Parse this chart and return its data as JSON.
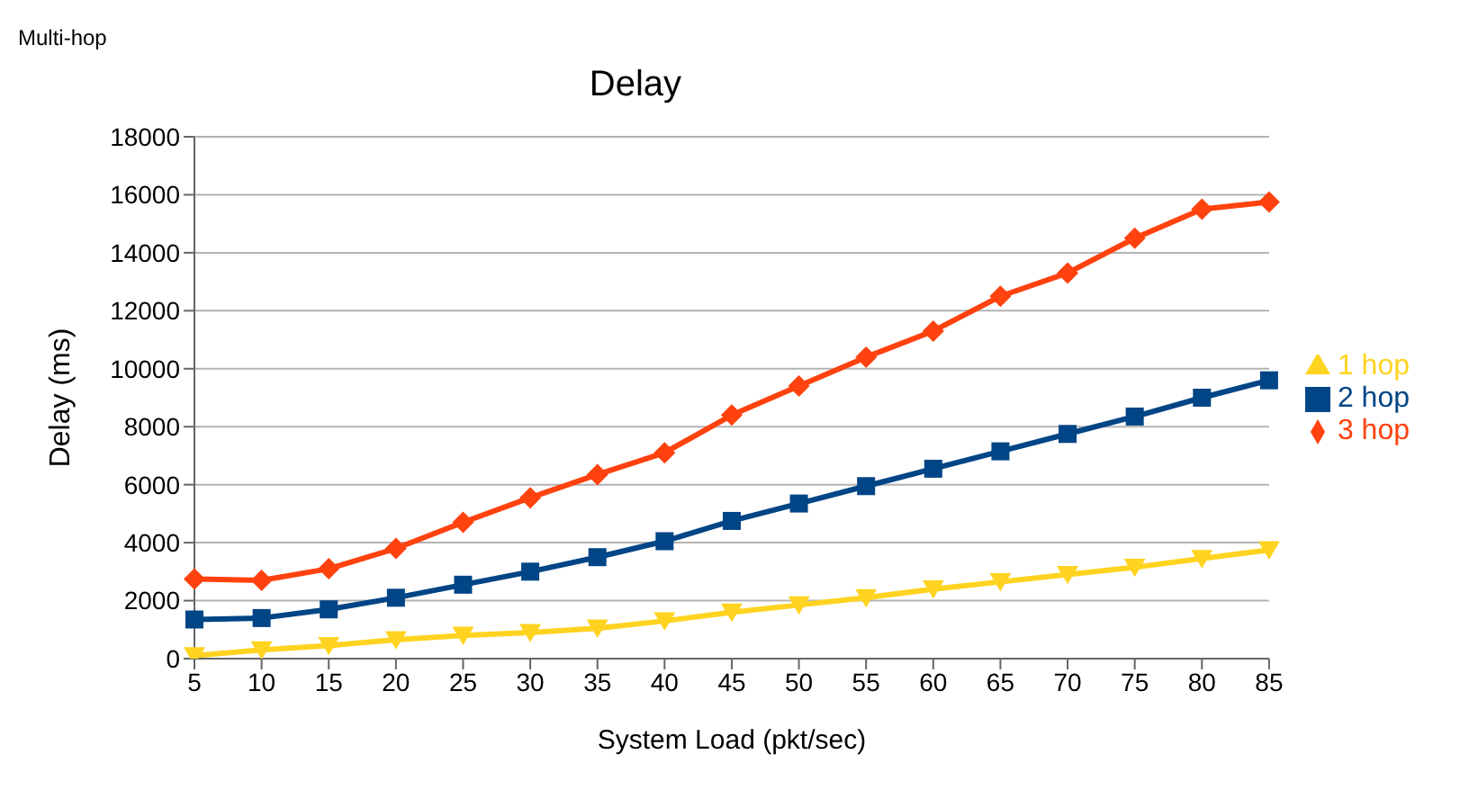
{
  "chart_data": {
    "type": "line",
    "title": "Delay",
    "annotations": [
      "Multi-hop"
    ],
    "xlabel": "System Load (pkt/sec)",
    "ylabel": "Delay (ms)",
    "categories": [
      "5",
      "10",
      "15",
      "20",
      "25",
      "30",
      "35",
      "40",
      "45",
      "50",
      "55",
      "60",
      "65",
      "70",
      "75",
      "80",
      "85"
    ],
    "series": [
      {
        "name": "1 hop",
        "color": "#ffd320",
        "marker": "triangle",
        "values": [
          100,
          300,
          450,
          650,
          800,
          900,
          1050,
          1300,
          1600,
          1850,
          2100,
          2400,
          2650,
          2900,
          3150,
          3450,
          3750
        ]
      },
      {
        "name": "2 hop",
        "color": "#004586",
        "marker": "square",
        "values": [
          1350,
          1400,
          1700,
          2100,
          2550,
          3000,
          3500,
          4050,
          4750,
          5350,
          5950,
          6550,
          7150,
          7750,
          8350,
          9000,
          9600
        ]
      },
      {
        "name": "3 hop",
        "color": "#ff420e",
        "marker": "diamond",
        "values": [
          2750,
          2700,
          3100,
          3800,
          4700,
          5550,
          6350,
          7100,
          8400,
          9400,
          10400,
          11300,
          12500,
          13300,
          14500,
          15500,
          15750
        ]
      }
    ],
    "ylim": [
      0,
      18000
    ],
    "yticks": [
      0,
      2000,
      4000,
      6000,
      8000,
      10000,
      12000,
      14000,
      16000,
      18000
    ],
    "grid": "y",
    "legend": "right",
    "line_style": "solid"
  }
}
